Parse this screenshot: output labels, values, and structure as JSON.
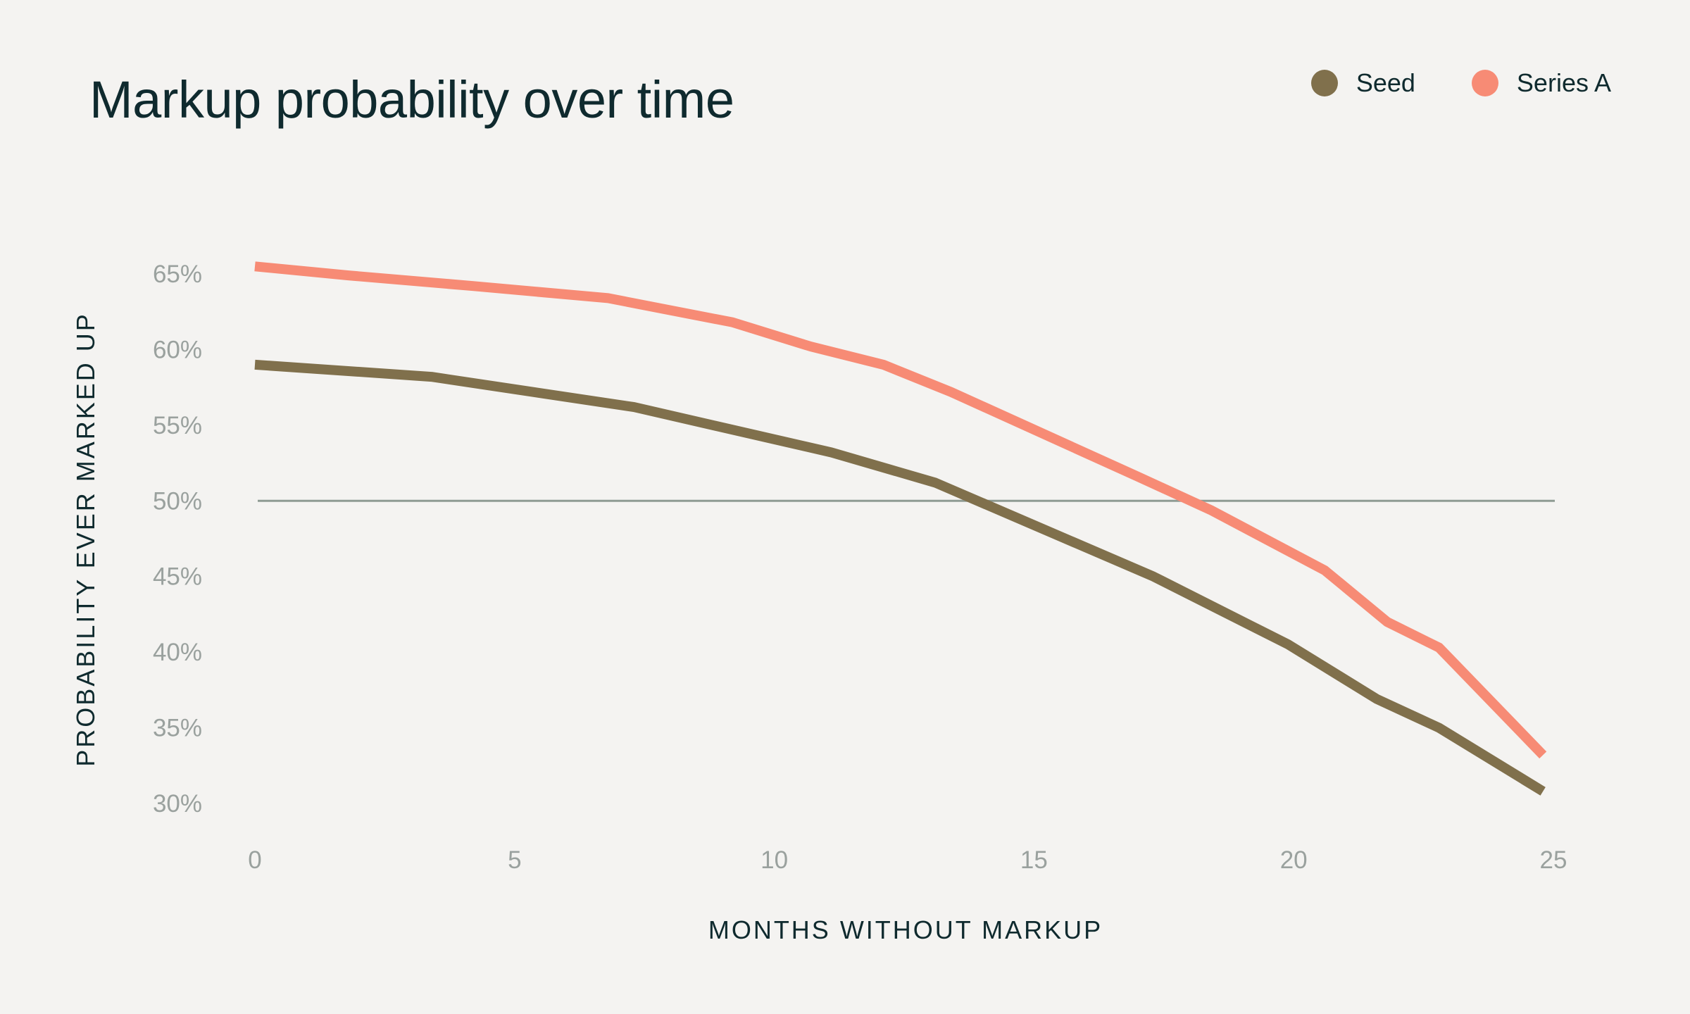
{
  "chart_data": {
    "type": "line",
    "title": "Markup probability over time",
    "xlabel": "MONTHS WITHOUT MARKUP",
    "ylabel": "PROBABILITY EVER MARKED UP",
    "xlim": [
      0,
      25
    ],
    "ylim": [
      30,
      65
    ],
    "x_ticks": [
      {
        "value": 0,
        "label": "0"
      },
      {
        "value": 5,
        "label": "5"
      },
      {
        "value": 10,
        "label": "10"
      },
      {
        "value": 15,
        "label": "15"
      },
      {
        "value": 20,
        "label": "20"
      },
      {
        "value": 25,
        "label": "25"
      }
    ],
    "y_ticks": [
      {
        "value": 30,
        "label": "30%"
      },
      {
        "value": 35,
        "label": "35%"
      },
      {
        "value": 40,
        "label": "40%"
      },
      {
        "value": 45,
        "label": "45%"
      },
      {
        "value": 50,
        "label": "50%"
      },
      {
        "value": 55,
        "label": "55%"
      },
      {
        "value": 60,
        "label": "60%"
      },
      {
        "value": 65,
        "label": "65%"
      }
    ],
    "reference_line": {
      "y": 50,
      "color": "#8e9b93"
    },
    "legend_position": "top-right",
    "grid": false,
    "series": [
      {
        "name": "Seed",
        "color": "#80704c",
        "points": [
          [
            0,
            59.0
          ],
          [
            3.4,
            58.2
          ],
          [
            7.3,
            56.2
          ],
          [
            11.1,
            53.2
          ],
          [
            13.1,
            51.2
          ],
          [
            17.3,
            45.0
          ],
          [
            19.9,
            40.5
          ],
          [
            21.6,
            36.9
          ],
          [
            22.8,
            35.0
          ],
          [
            24.8,
            30.8
          ]
        ]
      },
      {
        "name": "Series A",
        "color": "#f78b75",
        "points": [
          [
            0,
            65.5
          ],
          [
            1.8,
            64.9
          ],
          [
            4.2,
            64.2
          ],
          [
            6.8,
            63.4
          ],
          [
            9.2,
            61.8
          ],
          [
            10.7,
            60.2
          ],
          [
            12.1,
            59.0
          ],
          [
            13.4,
            57.2
          ],
          [
            17.0,
            51.6
          ],
          [
            18.4,
            49.4
          ],
          [
            20.6,
            45.4
          ],
          [
            21.8,
            42.0
          ],
          [
            22.8,
            40.3
          ],
          [
            24.8,
            33.2
          ]
        ]
      }
    ]
  }
}
